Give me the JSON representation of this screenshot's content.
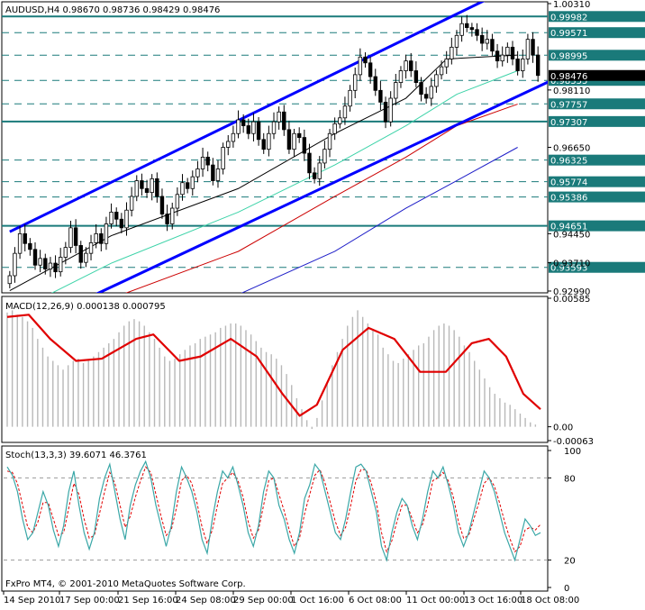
{
  "chart_data": [
    {
      "type": "candlestick",
      "title": "AUDUSD,H4  0.98670 0.98736 0.98429 0.98476",
      "symbol": "AUDUSD",
      "timeframe": "H4",
      "ohlc_last": {
        "open": 0.9867,
        "high": 0.98736,
        "low": 0.98429,
        "close": 0.98476
      },
      "ylim": [
        0.9299,
        1.0031
      ],
      "y_ticks": [
        "1.00310",
        "0.98110",
        "0.96650",
        "0.94450",
        "0.93710",
        "0.92990"
      ],
      "horizontal_levels": [
        {
          "value": 0.99982,
          "label": "0.99982",
          "style": "solid-teal"
        },
        {
          "value": 0.99571,
          "label": "0.99571",
          "style": "dashed-teal"
        },
        {
          "value": 0.98995,
          "label": "0.98995",
          "style": "dashed-teal"
        },
        {
          "value": 0.98355,
          "label": "0.98355",
          "style": "dashed-teal"
        },
        {
          "value": 0.97757,
          "label": "0.97757",
          "style": "dashed-teal"
        },
        {
          "value": 0.97307,
          "label": "0.97307",
          "style": "solid-teal"
        },
        {
          "value": 0.96325,
          "label": "0.96325",
          "style": "dashed-teal"
        },
        {
          "value": 0.95774,
          "label": "0.95774",
          "style": "dashed-teal"
        },
        {
          "value": 0.95386,
          "label": "0.95386",
          "style": "dashed-teal"
        },
        {
          "value": 0.94651,
          "label": "0.94651",
          "style": "solid-teal"
        },
        {
          "value": 0.93593,
          "label": "0.93593",
          "style": "dashed-teal"
        }
      ],
      "bid_label": "0.98476",
      "channel": {
        "color": "#0000ff",
        "upper": [
          [
            0,
            0.945
          ],
          [
            100,
            1.008
          ]
        ],
        "lower": [
          [
            16,
            0.9285
          ],
          [
            114,
            0.988
          ]
        ]
      },
      "moving_averages": [
        {
          "color": "#000000",
          "points": [
            [
              0,
              0.93
            ],
            [
              20,
              0.944
            ],
            [
              45,
              0.956
            ],
            [
              64,
              0.97
            ],
            [
              78,
              0.979
            ],
            [
              86,
              0.989
            ],
            [
              100,
              0.99
            ]
          ]
        },
        {
          "color": "#3cd3a8",
          "points": [
            [
              0,
              0.924
            ],
            [
              20,
              0.937
            ],
            [
              45,
              0.95
            ],
            [
              64,
              0.962
            ],
            [
              78,
              0.972
            ],
            [
              88,
              0.98
            ],
            [
              100,
              0.986
            ]
          ]
        },
        {
          "color": "#cc0000",
          "points": [
            [
              0,
              0.917
            ],
            [
              20,
              0.928
            ],
            [
              45,
              0.94
            ],
            [
              64,
              0.954
            ],
            [
              78,
              0.964
            ],
            [
              88,
              0.972
            ],
            [
              100,
              0.9775
            ]
          ]
        },
        {
          "color": "#1e1ec8",
          "points": [
            [
              45,
              0.929
            ],
            [
              64,
              0.94
            ],
            [
              78,
              0.951
            ],
            [
              88,
              0.958
            ],
            [
              100,
              0.9665
            ]
          ]
        }
      ],
      "candles_close": [
        0.9338,
        0.9395,
        0.9445,
        0.942,
        0.9405,
        0.9365,
        0.9382,
        0.9355,
        0.937,
        0.9348,
        0.9385,
        0.941,
        0.946,
        0.9415,
        0.9372,
        0.9395,
        0.9422,
        0.9445,
        0.942,
        0.947,
        0.95,
        0.9482,
        0.946,
        0.9505,
        0.954,
        0.958,
        0.956,
        0.955,
        0.9585,
        0.954,
        0.9495,
        0.947,
        0.951,
        0.9545,
        0.9575,
        0.956,
        0.959,
        0.961,
        0.964,
        0.962,
        0.958,
        0.961,
        0.9665,
        0.968,
        0.97,
        0.9735,
        0.972,
        0.97,
        0.973,
        0.9685,
        0.966,
        0.97,
        0.973,
        0.9755,
        0.971,
        0.966,
        0.97,
        0.969,
        0.965,
        0.96,
        0.9585,
        0.9625,
        0.966,
        0.97,
        0.9725,
        0.974,
        0.977,
        0.981,
        0.985,
        0.9895,
        0.988,
        0.9845,
        0.981,
        0.978,
        0.973,
        0.979,
        0.983,
        0.986,
        0.9885,
        0.986,
        0.983,
        0.98,
        0.979,
        0.982,
        0.985,
        0.987,
        0.989,
        0.992,
        0.995,
        0.998,
        0.997,
        0.9965,
        0.995,
        0.993,
        0.994,
        0.991,
        0.9885,
        0.99,
        0.992,
        0.989,
        0.986,
        0.989,
        0.994,
        0.99,
        0.9848
      ],
      "x_ticks": [
        "14 Sep 2010",
        "17 Sep 00:00",
        "21 Sep 16:00",
        "24 Sep 08:00",
        "29 Sep 00:00",
        "1 Oct 16:00",
        "6 Oct 08:00",
        "11 Oct 00:00",
        "13 Oct 16:00",
        "18 Oct 08:00"
      ]
    },
    {
      "type": "bar",
      "title": "MACD(12,26,9) 0.000138 0.000795",
      "ylim": [
        -0.00063,
        0.00585
      ],
      "y_ticks": [
        "0.00585",
        "0.00",
        "-0.00063"
      ],
      "histogram": [
        0.0052,
        0.0053,
        0.0051,
        0.005,
        0.0048,
        0.0045,
        0.004,
        0.0036,
        0.0032,
        0.003,
        0.0028,
        0.0026,
        0.0028,
        0.003,
        0.0031,
        0.0029,
        0.003,
        0.0032,
        0.0034,
        0.0036,
        0.0038,
        0.004,
        0.0043,
        0.0046,
        0.0048,
        0.0049,
        0.0048,
        0.0046,
        0.0043,
        0.004,
        0.0036,
        0.0032,
        0.003,
        0.0031,
        0.0033,
        0.0035,
        0.0037,
        0.0038,
        0.004,
        0.0041,
        0.0042,
        0.0043,
        0.0045,
        0.0046,
        0.0047,
        0.0047,
        0.0046,
        0.0044,
        0.0042,
        0.0039,
        0.0036,
        0.0034,
        0.0033,
        0.0031,
        0.0028,
        0.0024,
        0.0019,
        0.0013,
        0.0008,
        0.0003,
        -0.0001,
        0.0004,
        0.0012,
        0.002,
        0.0028,
        0.0034,
        0.004,
        0.0046,
        0.005,
        0.0053,
        0.005,
        0.0047,
        0.0044,
        0.0042,
        0.0036,
        0.0033,
        0.003,
        0.0029,
        0.0031,
        0.0033,
        0.0035,
        0.0037,
        0.0038,
        0.0041,
        0.0044,
        0.0046,
        0.0047,
        0.0046,
        0.0044,
        0.0041,
        0.0037,
        0.0034,
        0.003,
        0.0026,
        0.0022,
        0.0018,
        0.0015,
        0.0013,
        0.0011,
        0.001,
        0.0008,
        0.0006,
        0.0004,
        0.0002,
        0.0001
      ],
      "signal": [
        [
          0,
          0.005
        ],
        [
          5,
          0.0051
        ],
        [
          10,
          0.004
        ],
        [
          16,
          0.003
        ],
        [
          22,
          0.0031
        ],
        [
          30,
          0.004
        ],
        [
          34,
          0.0042
        ],
        [
          40,
          0.003
        ],
        [
          45,
          0.0032
        ],
        [
          52,
          0.004
        ],
        [
          58,
          0.0032
        ],
        [
          64,
          0.0015
        ],
        [
          68,
          0.0005
        ],
        [
          72,
          0.001
        ],
        [
          78,
          0.0035
        ],
        [
          84,
          0.0045
        ],
        [
          90,
          0.004
        ],
        [
          96,
          0.0025
        ],
        [
          102,
          0.0025
        ],
        [
          108,
          0.0038
        ],
        [
          112,
          0.004
        ],
        [
          116,
          0.0032
        ],
        [
          120,
          0.0015
        ],
        [
          124,
          0.0008
        ]
      ],
      "signal_color": "#e00000"
    },
    {
      "type": "line",
      "title": "Stoch(13,3,3) 39.6071 46.3761",
      "ylim": [
        0,
        100
      ],
      "y_ticks": [
        "100",
        "80",
        "20",
        "0"
      ],
      "levels": [
        80,
        20
      ],
      "main_color": "#3aa7a7",
      "signal_color": "#e00000",
      "main": [
        88,
        82,
        70,
        50,
        35,
        40,
        55,
        70,
        60,
        42,
        30,
        45,
        70,
        85,
        60,
        40,
        28,
        40,
        65,
        80,
        90,
        70,
        50,
        35,
        60,
        75,
        85,
        92,
        80,
        60,
        45,
        30,
        45,
        70,
        88,
        80,
        70,
        55,
        35,
        25,
        50,
        70,
        85,
        80,
        88,
        75,
        60,
        40,
        30,
        45,
        70,
        85,
        80,
        60,
        50,
        35,
        25,
        40,
        65,
        75,
        90,
        85,
        70,
        55,
        40,
        35,
        50,
        70,
        88,
        90,
        85,
        70,
        55,
        30,
        20,
        40,
        55,
        65,
        60,
        45,
        35,
        50,
        70,
        85,
        80,
        88,
        75,
        60,
        40,
        30,
        40,
        55,
        70,
        85,
        80,
        70,
        55,
        40,
        30,
        20,
        35,
        50,
        45,
        38,
        40
      ],
      "signal": [
        85,
        84,
        76,
        60,
        44,
        40,
        48,
        62,
        62,
        50,
        38,
        40,
        58,
        76,
        68,
        50,
        36,
        38,
        54,
        70,
        84,
        76,
        60,
        44,
        52,
        66,
        78,
        88,
        84,
        68,
        52,
        38,
        42,
        58,
        78,
        82,
        76,
        62,
        44,
        32,
        42,
        60,
        76,
        80,
        84,
        78,
        66,
        48,
        36,
        42,
        60,
        78,
        80,
        68,
        56,
        42,
        30,
        36,
        54,
        68,
        82,
        86,
        76,
        62,
        48,
        38,
        44,
        60,
        78,
        86,
        86,
        76,
        62,
        40,
        26,
        34,
        48,
        60,
        60,
        50,
        40,
        46,
        60,
        78,
        80,
        84,
        78,
        66,
        48,
        36,
        38,
        50,
        62,
        76,
        80,
        74,
        62,
        48,
        36,
        26,
        30,
        42,
        44,
        42,
        46
      ]
    }
  ],
  "footer": {
    "copyright": "FxPro MT4, © 2001-2010 MetaQuotes Software Corp."
  }
}
